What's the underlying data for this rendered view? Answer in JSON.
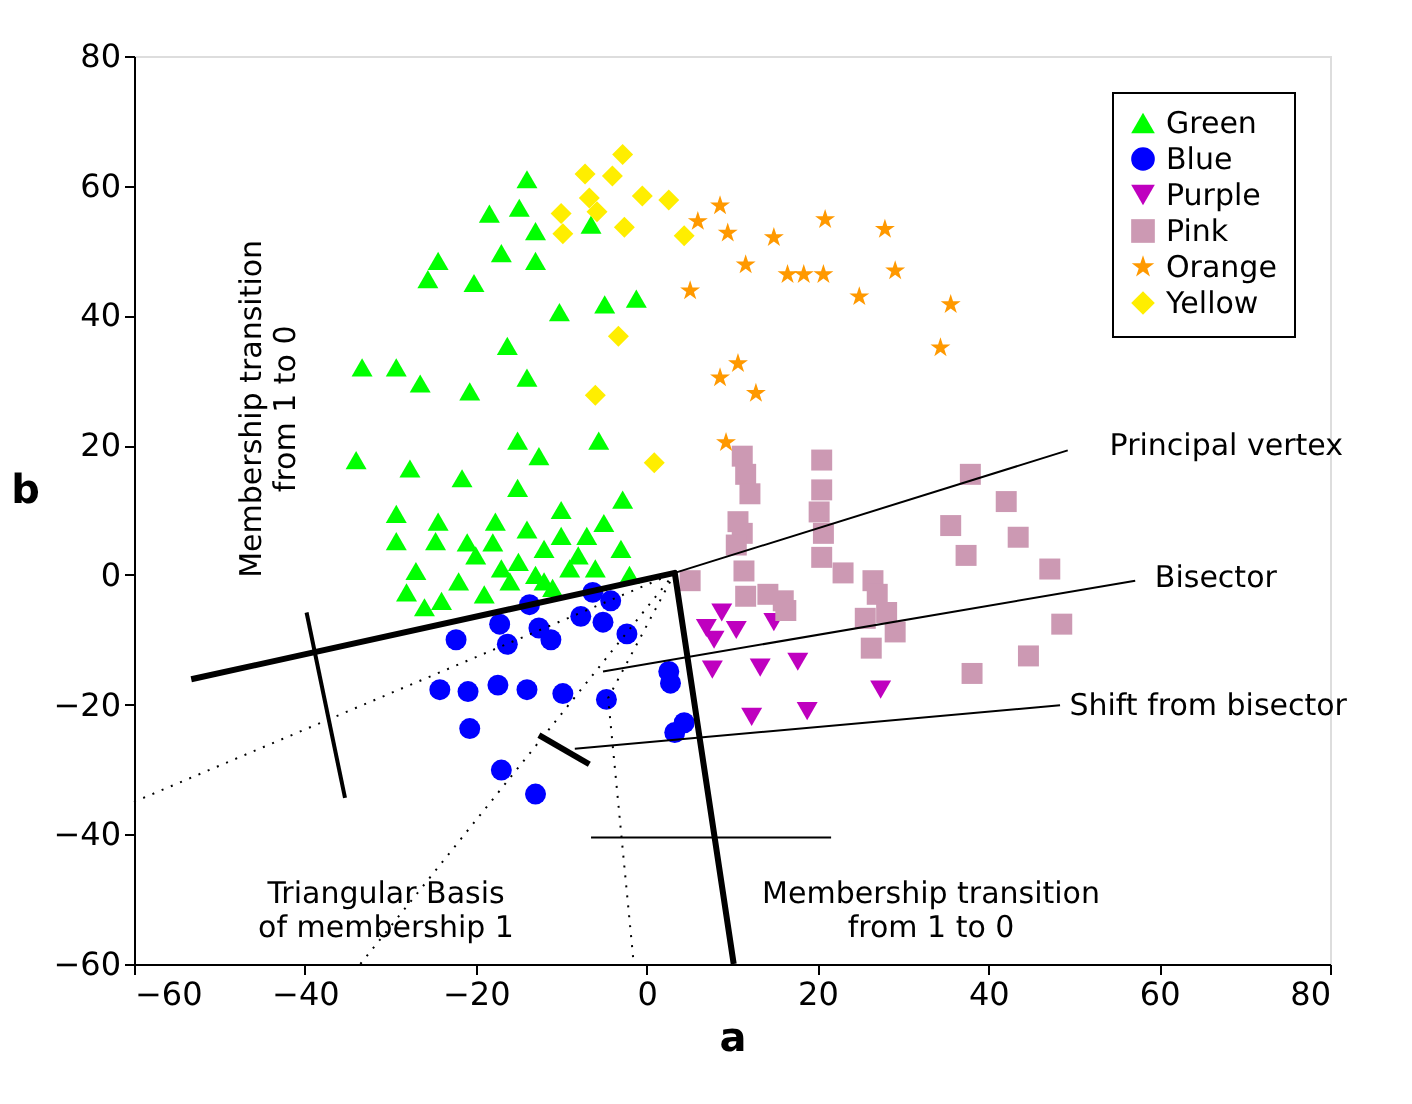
{
  "chart_data": {
    "type": "scatter",
    "xlabel": "a",
    "ylabel": "b",
    "xlim": [
      -60,
      80
    ],
    "ylim": [
      -60,
      80
    ],
    "xticks": [
      -60,
      -40,
      -20,
      0,
      20,
      40,
      60,
      80
    ],
    "yticks": [
      -60,
      -40,
      -20,
      0,
      20,
      40,
      60,
      80
    ],
    "grid": false,
    "legend": "top right",
    "series": [
      {
        "name": "Green",
        "type": "scatter",
        "marker": "triangle",
        "color": "#00ff00",
        "x": [
          -14,
          -18.4,
          -14.9,
          -13,
          -6.5,
          -24.4,
          -25.6,
          -17,
          -13,
          -20.2,
          -10.2,
          -4.9,
          -1.2,
          -16.3,
          -33.3,
          -29.3,
          -26.5,
          -20.7,
          -14,
          -15.1,
          -12.6,
          -5.6,
          -34,
          -27.7,
          -21.6,
          -15.1,
          -29.3,
          -24.4,
          -29.3,
          -24.7,
          -27,
          -28.1,
          -2.8,
          -10,
          -17.7,
          -20,
          -18,
          -15,
          -12,
          -10,
          -8,
          -6,
          -22,
          -24,
          -19,
          -16,
          -13,
          -11,
          -9,
          -7,
          -5,
          -3,
          -17,
          -14,
          -21,
          -12,
          -26,
          -2
        ],
        "values": [
          61,
          55.7,
          56.6,
          53,
          54,
          48.4,
          45.6,
          49.6,
          48.4,
          45,
          40.5,
          41.7,
          42.6,
          35.3,
          32,
          32,
          29.5,
          28.3,
          30.4,
          20.7,
          18.3,
          20.7,
          17.7,
          16.4,
          14.9,
          13.4,
          9.4,
          8.2,
          5.2,
          5.2,
          0.6,
          -2.7,
          11.6,
          10,
          8.2,
          3,
          5,
          2,
          4,
          6,
          3,
          1,
          -1,
          -4,
          -3,
          -1,
          0,
          -2,
          1,
          6,
          8,
          4,
          1,
          7,
          5,
          -1,
          -5,
          0
        ]
      },
      {
        "name": "Blue",
        "type": "scatter",
        "marker": "circle",
        "color": "#0000ff",
        "x": [
          -13.7,
          -17.2,
          -22.3,
          -16.3,
          -12.6,
          -11.2,
          -7.7,
          -5.1,
          -4.2,
          -2.3,
          -24.2,
          -20.9,
          -17.4,
          -14,
          -9.8,
          -4.7,
          -20.7,
          2.6,
          2.8,
          4.4,
          3.3,
          -17,
          -13,
          -6.3
        ],
        "values": [
          -4.6,
          -7.6,
          -10,
          -10.7,
          -8.2,
          -10,
          -6.4,
          -7.3,
          -4,
          -9.1,
          -17.7,
          -18,
          -17,
          -17.7,
          -18.3,
          -19.2,
          -23.7,
          -14.9,
          -16.7,
          -22.8,
          -24.3,
          -30.1,
          -33.8,
          -2.7
        ]
      },
      {
        "name": "Purple",
        "type": "scatter",
        "marker": "triangle-down",
        "color": "#bf00bf",
        "x": [
          8.8,
          7,
          10.5,
          14.9,
          7.9,
          7.7,
          13.3,
          17.7,
          27.4,
          12.3,
          18.8
        ],
        "values": [
          -5.8,
          -8.2,
          -8.5,
          -7.3,
          -10,
          -14.6,
          -14.3,
          -13.4,
          -17.7,
          -21.9,
          -21
        ]
      },
      {
        "name": "Pink",
        "type": "scatter",
        "marker": "square",
        "color": "#cc99b3",
        "x": [
          11.2,
          11.6,
          12.1,
          10.7,
          11.2,
          10.5,
          11.4,
          11.6,
          14.2,
          16,
          16.3,
          5.1,
          20.5,
          20.5,
          20.2,
          20.7,
          20.5,
          23,
          26.5,
          27,
          28.1,
          29.1,
          25.6,
          26.3,
          37.9,
          42.1,
          35.6,
          43.5,
          37.4,
          47.2,
          48.6,
          44.7,
          38.1
        ],
        "values": [
          18.3,
          15.5,
          12.5,
          8.2,
          6.4,
          4.6,
          0.6,
          -3.3,
          -3,
          -4,
          -5.5,
          -0.9,
          17.7,
          13.1,
          9.7,
          6.4,
          2.7,
          0.3,
          -0.9,
          -3,
          -5.8,
          -8.8,
          -6.7,
          -11.3,
          15.5,
          11.3,
          7.6,
          5.8,
          3,
          0.9,
          -7.6,
          -12.5,
          -15.2
        ]
      },
      {
        "name": "Orange",
        "type": "scatter",
        "marker": "star",
        "color": "#ff9900",
        "x": [
          8.6,
          6,
          9.5,
          14.9,
          20.9,
          27.9,
          11.6,
          16.5,
          18.4,
          20.7,
          24.9,
          29.1,
          5.1,
          35.6,
          34.4,
          10.7,
          8.6,
          12.8,
          9.3
        ],
        "values": [
          56.9,
          54.5,
          52.7,
          52,
          54.8,
          53.3,
          47.8,
          46.3,
          46.3,
          46.3,
          42.9,
          46.9,
          43.8,
          41.7,
          35,
          32.6,
          30.4,
          28,
          20.4
        ]
      },
      {
        "name": "Yellow",
        "type": "scatter",
        "marker": "diamond",
        "color": "#ffee00",
        "x": [
          -2.8,
          -7.2,
          -4,
          -0.5,
          2.6,
          -6.7,
          -5.8,
          -10,
          -9.8,
          -2.6,
          4.4,
          -3.3,
          -6,
          0.9
        ],
        "values": [
          64.8,
          61.8,
          61.5,
          58.4,
          57.8,
          58.1,
          56,
          55.7,
          52.6,
          53.6,
          52.3,
          36.8,
          27.7,
          17.3
        ]
      },
      {
        "type": "line",
        "color": "#000000",
        "line_style": "solid",
        "x": [
          -53.3,
          3.3,
          10.2
        ],
        "values": [
          -16.1,
          0.3,
          -60
        ]
      },
      {
        "type": "line",
        "color": "#000000",
        "line_style": "dotted",
        "x": [
          -60,
          3.3
        ],
        "values": [
          -35,
          0.3
        ]
      },
      {
        "type": "line",
        "color": "#000000",
        "line_style": "dotted",
        "x": [
          -33.5,
          3.3
        ],
        "values": [
          -60,
          0.3
        ]
      },
      {
        "type": "line",
        "color": "#000000",
        "line_style": "dotted",
        "x": [
          3.3,
          -4.5,
          -1.5
        ],
        "values": [
          0.3,
          -19,
          -60
        ]
      },
      {
        "type": "line",
        "color": "#000000",
        "line_style": "solid",
        "x": [
          -12.6,
          -6.7
        ],
        "values": [
          -24.7,
          -29.2
        ]
      },
      {
        "type": "line",
        "color": "#000000",
        "line_style": "solid",
        "x": [
          -35.3,
          -39.8
        ],
        "values": [
          -34.4,
          -5.8
        ]
      },
      {
        "type": "line",
        "color": "#000000",
        "line_style": "solid",
        "x": [
          -6.5,
          21.6
        ],
        "values": [
          -40.5,
          -40.5
        ]
      },
      {
        "type": "line",
        "color": "#000000",
        "line_style": "solid",
        "x": [
          3.3,
          49.3
        ],
        "values": [
          0.3,
          19.2
        ]
      },
      {
        "type": "line",
        "color": "#000000",
        "line_style": "solid",
        "x": [
          -5.1,
          57.2
        ],
        "values": [
          -14.9,
          -0.9
        ]
      },
      {
        "type": "line",
        "color": "#000000",
        "line_style": "solid",
        "x": [
          -8.4,
          48.4
        ],
        "values": [
          -26.8,
          -20.1
        ]
      }
    ],
    "annotations": [
      "Principal vertex",
      "Bisector",
      "Shift from bisector",
      "Triangular Basis\nof membership 1",
      "Membership transition\nfrom 1 to 0",
      "Membership transition\nfrom 1 to 0"
    ]
  }
}
